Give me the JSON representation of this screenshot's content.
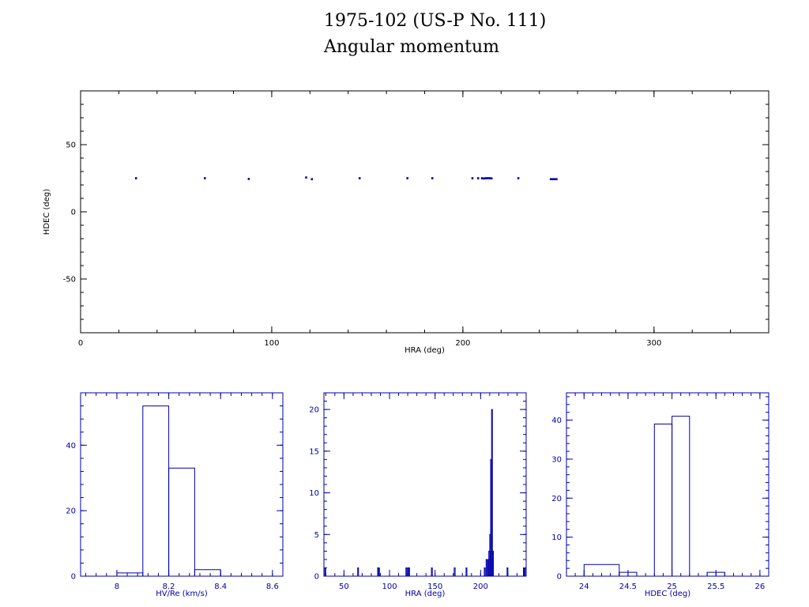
{
  "header": {
    "title": "1975-102 (US-P No. 111)",
    "subtitle": "Angular momentum"
  },
  "colors": {
    "axes": "#000000",
    "data": "#0000aa"
  },
  "chart_data": [
    {
      "type": "scatter",
      "xlabel": "HRA (deg)",
      "ylabel": "HDEC (deg)",
      "xlim": [
        0,
        360
      ],
      "ylim": [
        -90,
        90
      ],
      "xticks": [
        0,
        100,
        200,
        300
      ],
      "yticks": [
        -50,
        0,
        50
      ],
      "grid": false,
      "points": [
        [
          29,
          25
        ],
        [
          65,
          25
        ],
        [
          88,
          24.5
        ],
        [
          118,
          25.5
        ],
        [
          121,
          24.3
        ],
        [
          146,
          25
        ],
        [
          171,
          25
        ],
        [
          184,
          25
        ],
        [
          205,
          25
        ],
        [
          208,
          25
        ],
        [
          210,
          25
        ],
        [
          211,
          24.8
        ],
        [
          212,
          25
        ],
        [
          213,
          25
        ],
        [
          214,
          25
        ],
        [
          215,
          24.9
        ],
        [
          229,
          25
        ],
        [
          246,
          24.3
        ],
        [
          247,
          24.3
        ],
        [
          248,
          24.3
        ],
        [
          249,
          24.3
        ]
      ]
    },
    {
      "type": "histogram",
      "xlabel": "HV/Re (km/s)",
      "ylabel": "",
      "xlim": [
        7.86,
        8.64
      ],
      "ylim": [
        0,
        56
      ],
      "xticks": [
        8,
        8.2,
        8.4,
        8.6
      ],
      "xtick_labels": [
        "8",
        "8.2",
        "8.4",
        "8.6"
      ],
      "yticks": [
        0,
        20,
        40
      ],
      "bins": [
        [
          8.0,
          8.1,
          1
        ],
        [
          8.1,
          8.2,
          52
        ],
        [
          8.2,
          8.3,
          33
        ],
        [
          8.3,
          8.4,
          2
        ]
      ]
    },
    {
      "type": "histogram",
      "xlabel": "HRA (deg)",
      "ylabel": "",
      "xlim": [
        28,
        250
      ],
      "ylim": [
        0,
        22
      ],
      "xticks": [
        50,
        100,
        150,
        200
      ],
      "xtick_labels": [
        "50",
        "100",
        "150",
        "200"
      ],
      "yticks": [
        0,
        5,
        10,
        15,
        20
      ],
      "bins": [
        [
          29,
          30,
          1
        ],
        [
          65,
          66,
          1
        ],
        [
          87,
          88,
          1
        ],
        [
          88,
          89,
          1
        ],
        [
          118,
          119,
          1
        ],
        [
          120,
          121,
          1
        ],
        [
          121,
          122,
          1
        ],
        [
          146,
          147,
          1
        ],
        [
          171,
          172,
          1
        ],
        [
          184,
          185,
          1
        ],
        [
          204,
          205,
          1
        ],
        [
          206,
          207,
          2
        ],
        [
          208,
          209,
          2
        ],
        [
          209,
          210,
          3
        ],
        [
          210,
          211,
          5
        ],
        [
          211,
          212,
          14
        ],
        [
          212,
          213,
          20
        ],
        [
          213,
          214,
          3
        ],
        [
          229,
          230,
          1
        ],
        [
          247,
          248,
          1
        ],
        [
          248,
          249,
          1
        ]
      ]
    },
    {
      "type": "histogram",
      "xlabel": "HDEC (deg)",
      "ylabel": "",
      "xlim": [
        23.8,
        26.1
      ],
      "ylim": [
        0,
        47
      ],
      "xticks": [
        24,
        24.5,
        25,
        25.5,
        26
      ],
      "xtick_labels": [
        "24",
        "24.5",
        "25",
        "25.5",
        "26"
      ],
      "yticks": [
        0,
        10,
        20,
        30,
        40
      ],
      "bins": [
        [
          24.0,
          24.4,
          3
        ],
        [
          24.4,
          24.6,
          1
        ],
        [
          24.8,
          25.0,
          39
        ],
        [
          25.0,
          25.2,
          41
        ],
        [
          25.4,
          25.6,
          1
        ]
      ]
    }
  ]
}
